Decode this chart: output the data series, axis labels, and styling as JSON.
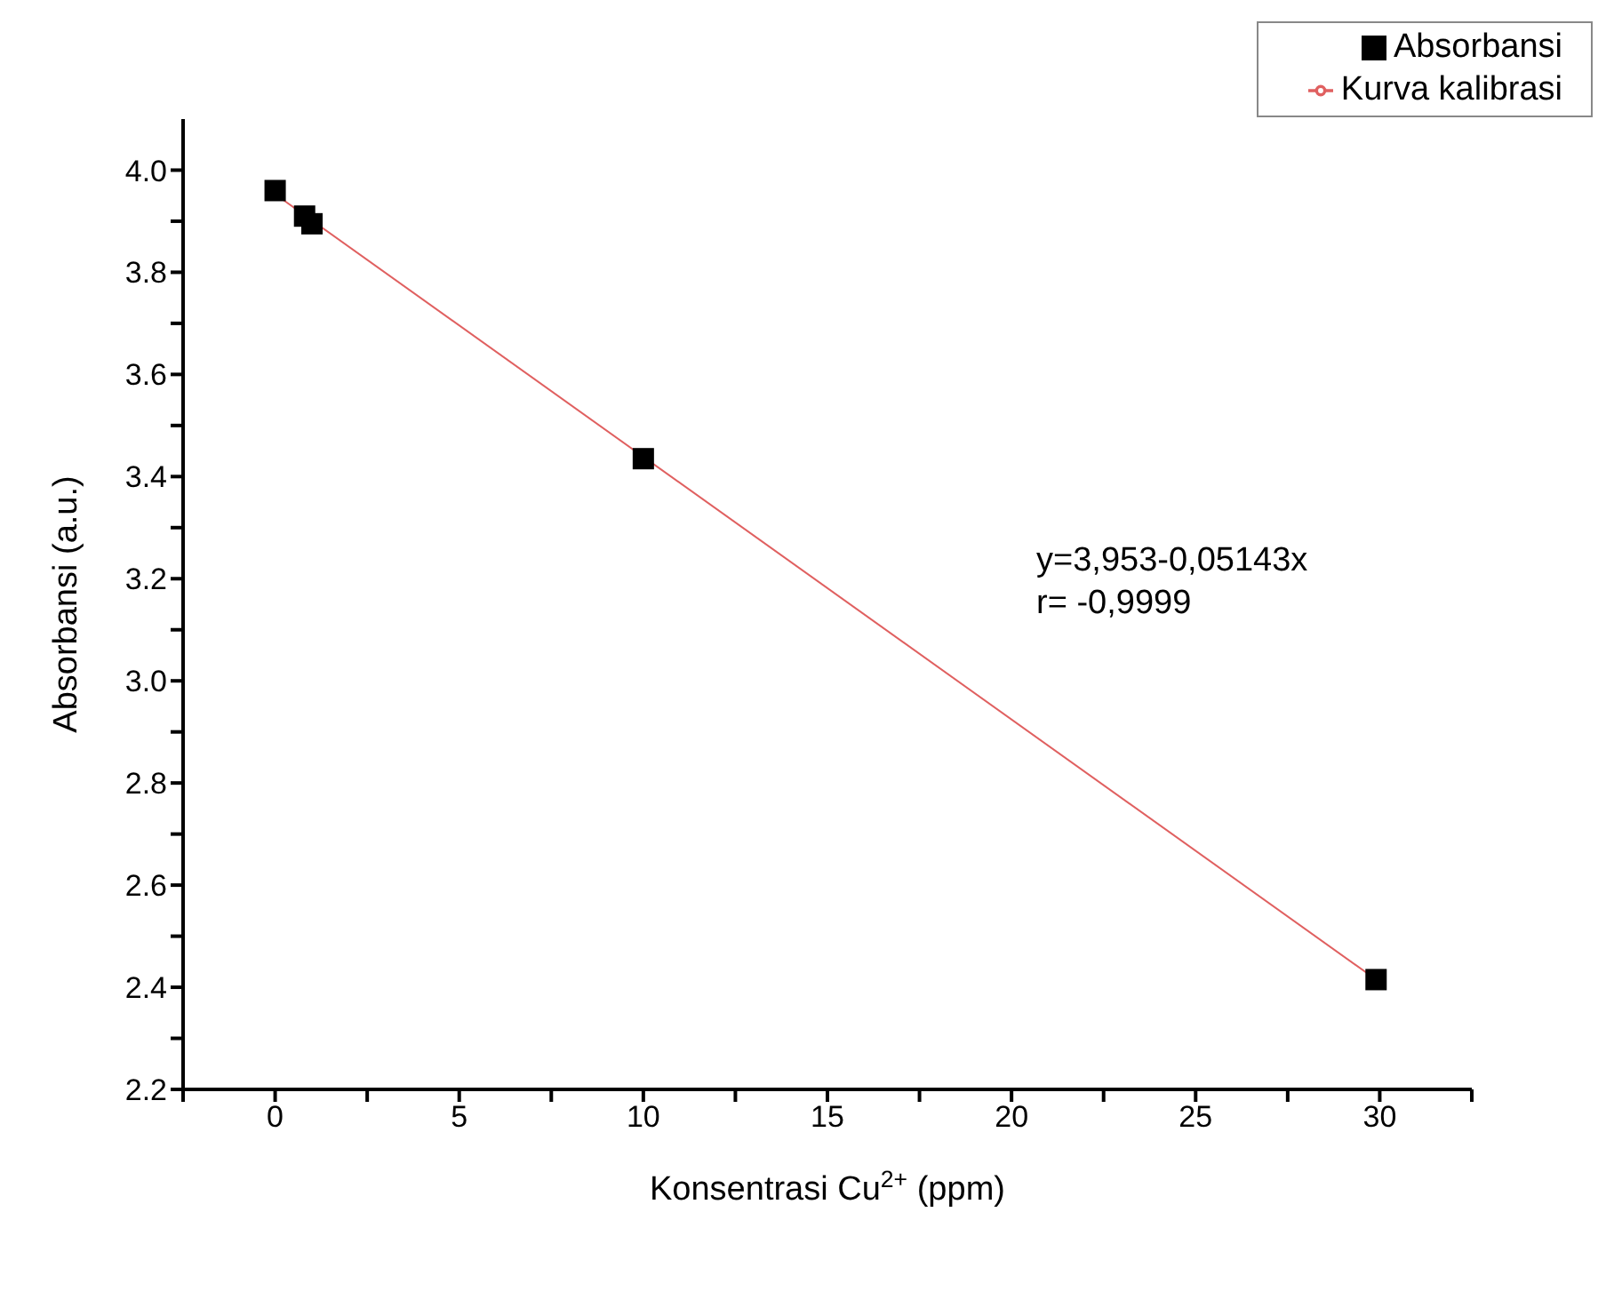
{
  "chart_data": {
    "type": "scatter",
    "xlabel": "Konsentrasi Cu$^{2+}$ (ppm)",
    "ylabel": "Absorbansi (a.u.)",
    "series": [
      {
        "name": "Absorbansi",
        "color": "#000000",
        "marker": "square",
        "x": [
          0,
          0.8,
          1.0,
          10,
          29.9
        ],
        "values": [
          3.96,
          3.91,
          3.895,
          3.435,
          2.415
        ]
      },
      {
        "name": "Kurva kalibrasi",
        "type": "line",
        "color": "#e06060",
        "marker": "none",
        "line_style": "solid",
        "x": [
          0,
          30
        ],
        "values": [
          3.953,
          2.41
        ]
      }
    ],
    "xlim": [
      -2.5,
      32.5
    ],
    "xticks": [
      {
        "value": -2.5,
        "label": null
      },
      0,
      {
        "value": 2.5,
        "label": null
      },
      5,
      {
        "value": 7.5,
        "label": null
      },
      10,
      {
        "value": 12.5,
        "label": null
      },
      15,
      {
        "value": 17.5,
        "label": null
      },
      20,
      {
        "value": 22.5,
        "label": null
      },
      25,
      {
        "value": 27.5,
        "label": null
      },
      30,
      {
        "value": 32.5,
        "label": null
      }
    ],
    "ylim": [
      2.2,
      4.1
    ],
    "yticks": [
      {
        "value": 2.2,
        "label": "2.2"
      },
      {
        "value": 2.3,
        "label": null
      },
      2.4,
      {
        "value": 2.5,
        "label": null
      },
      2.6,
      {
        "value": 2.7,
        "label": null
      },
      2.8,
      {
        "value": 2.9,
        "label": null
      },
      {
        "value": 3.0,
        "label": "3.0"
      },
      {
        "value": 3.1,
        "label": null
      },
      3.2,
      {
        "value": 3.3,
        "label": null
      },
      3.4,
      {
        "value": 3.5,
        "label": null
      },
      3.6,
      {
        "value": 3.7,
        "label": null
      },
      3.8,
      {
        "value": 3.9,
        "label": null
      },
      {
        "value": 4.0,
        "label": "4.0"
      }
    ],
    "grid": false,
    "legend": "top right",
    "annotations": [
      "y=3,953-0,05143x",
      "r= -0,9999"
    ]
  }
}
